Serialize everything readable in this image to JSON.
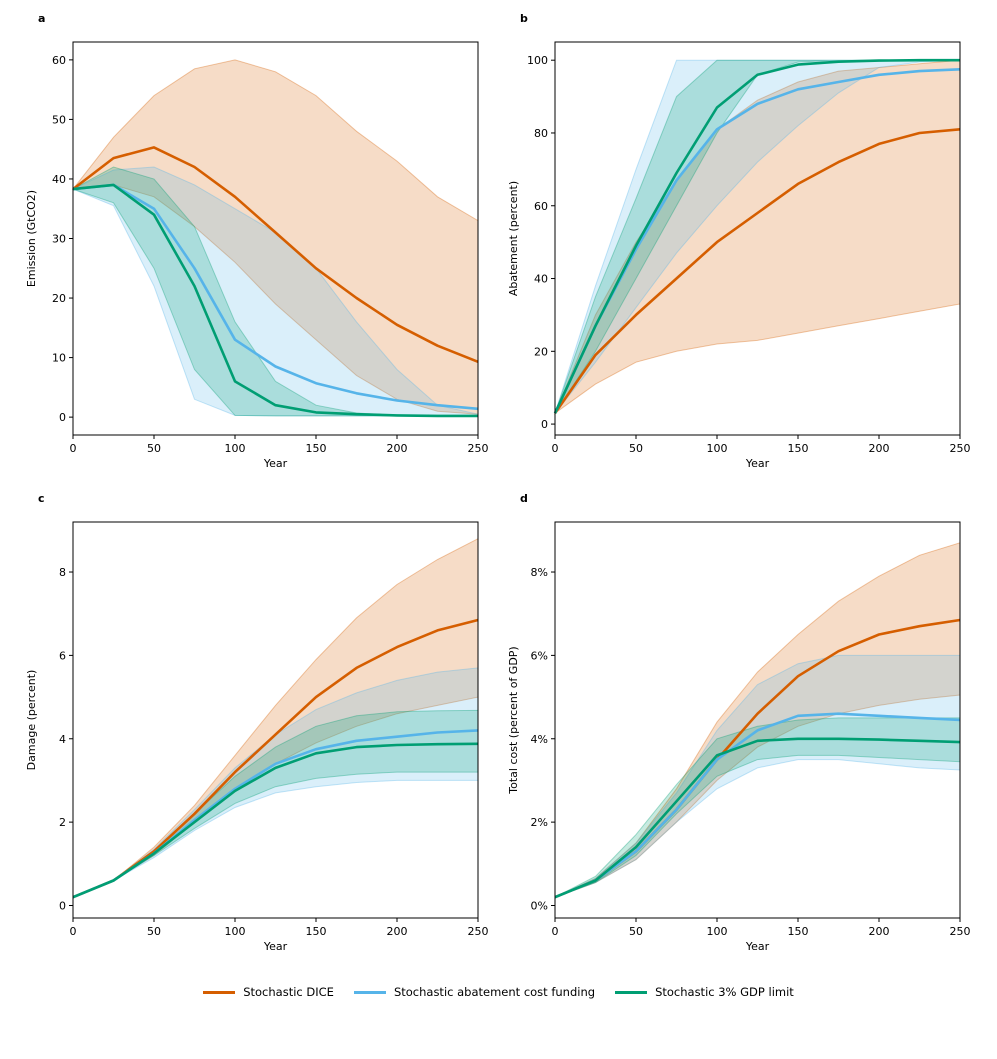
{
  "legend": {
    "items": [
      {
        "label": "Stochastic DICE",
        "color": "#d55e00"
      },
      {
        "label": "Stochastic abatement cost funding",
        "color": "#56b4e9"
      },
      {
        "label": "Stochastic 3% GDP limit",
        "color": "#009e73"
      }
    ]
  },
  "chart_data": [
    {
      "panel": "a",
      "type": "area",
      "xlabel": "Year",
      "ylabel": "Emission (GtCO2)",
      "xlim": [
        0,
        250
      ],
      "ylim": [
        -3,
        63
      ],
      "xticks": [
        0,
        50,
        100,
        150,
        200,
        250
      ],
      "yticks": [
        0,
        10,
        20,
        30,
        40,
        50,
        60
      ],
      "percent": false,
      "series": [
        {
          "name": "Stochastic DICE",
          "color": "#d55e00",
          "x": [
            0,
            25,
            50,
            75,
            100,
            125,
            150,
            175,
            200,
            225,
            250
          ],
          "mean": [
            38.3,
            43.5,
            45.3,
            42,
            37,
            31,
            25,
            20,
            15.5,
            12,
            9.3
          ],
          "lower": [
            38.3,
            39,
            37,
            32,
            26,
            19,
            13,
            7,
            3,
            1,
            0.5
          ],
          "upper": [
            38.3,
            47,
            54,
            58.5,
            60,
            58,
            54,
            48,
            43,
            37,
            33
          ]
        },
        {
          "name": "Stochastic abatement cost funding",
          "color": "#56b4e9",
          "x": [
            0,
            25,
            50,
            75,
            100,
            125,
            150,
            175,
            200,
            225,
            250
          ],
          "mean": [
            38.3,
            39,
            35,
            25,
            13,
            8.5,
            5.7,
            4,
            2.8,
            2,
            1.4
          ],
          "lower": [
            38.3,
            35.5,
            22,
            3,
            0.3,
            0.2,
            0.2,
            0.2,
            0.2,
            0.2,
            0.2
          ],
          "upper": [
            38.3,
            41.5,
            42,
            39,
            35,
            31,
            25,
            16,
            8,
            2,
            0.5
          ]
        },
        {
          "name": "Stochastic 3% GDP limit",
          "color": "#009e73",
          "x": [
            0,
            25,
            50,
            75,
            100,
            125,
            150,
            175,
            200,
            225,
            250
          ],
          "mean": [
            38.3,
            39,
            34,
            22,
            6,
            2,
            0.8,
            0.5,
            0.3,
            0.2,
            0.2
          ],
          "lower": [
            38.3,
            36,
            25,
            8,
            0.3,
            0.2,
            0.2,
            0.2,
            0.2,
            0.2,
            0.2
          ],
          "upper": [
            38.3,
            42,
            40,
            32,
            16,
            6,
            2,
            0.7,
            0.3,
            0.2,
            0.2
          ]
        }
      ]
    },
    {
      "panel": "b",
      "type": "area",
      "xlabel": "Year",
      "ylabel": "Abatement (percent)",
      "xlim": [
        0,
        250
      ],
      "ylim": [
        -3,
        105
      ],
      "xticks": [
        0,
        50,
        100,
        150,
        200,
        250
      ],
      "yticks": [
        0,
        20,
        40,
        60,
        80,
        100
      ],
      "percent": false,
      "series": [
        {
          "name": "Stochastic DICE",
          "color": "#d55e00",
          "x": [
            0,
            25,
            50,
            75,
            100,
            125,
            150,
            175,
            200,
            225,
            250
          ],
          "mean": [
            3,
            19,
            30,
            40,
            50,
            58,
            66,
            72,
            77,
            80,
            81
          ],
          "lower": [
            3,
            11,
            17,
            20,
            22,
            23,
            25,
            27,
            29,
            31,
            33
          ],
          "upper": [
            3,
            30,
            50,
            67,
            81,
            89,
            94,
            97,
            98,
            99,
            100
          ]
        },
        {
          "name": "Stochastic abatement cost funding",
          "color": "#56b4e9",
          "x": [
            0,
            25,
            50,
            75,
            100,
            125,
            150,
            175,
            200,
            225,
            250
          ],
          "mean": [
            3,
            27,
            48,
            67,
            81,
            88,
            92,
            94,
            96,
            97,
            97.5
          ],
          "lower": [
            3,
            17,
            32,
            47,
            60,
            72,
            82,
            91,
            98,
            99.5,
            100
          ],
          "upper": [
            3,
            38,
            70,
            100,
            100,
            100,
            100,
            100,
            100,
            100,
            100
          ]
        },
        {
          "name": "Stochastic 3% GDP limit",
          "color": "#009e73",
          "x": [
            0,
            25,
            50,
            75,
            100,
            125,
            150,
            175,
            200,
            225,
            250
          ],
          "mean": [
            3,
            27,
            49,
            69,
            87,
            96,
            98.8,
            99.6,
            99.9,
            100,
            100
          ],
          "lower": [
            3,
            20,
            40,
            60,
            80,
            96,
            99.5,
            100,
            100,
            100,
            100
          ],
          "upper": [
            3,
            35,
            62,
            90,
            100,
            100,
            100,
            100,
            100,
            100,
            100
          ]
        }
      ]
    },
    {
      "panel": "c",
      "type": "area",
      "xlabel": "Year",
      "ylabel": "Damage (percent)",
      "xlim": [
        0,
        250
      ],
      "ylim": [
        -0.3,
        9.2
      ],
      "xticks": [
        0,
        50,
        100,
        150,
        200,
        250
      ],
      "yticks": [
        0,
        2,
        4,
        6,
        8
      ],
      "percent": false,
      "series": [
        {
          "name": "Stochastic DICE",
          "color": "#d55e00",
          "x": [
            0,
            25,
            50,
            75,
            100,
            125,
            150,
            175,
            200,
            225,
            250
          ],
          "mean": [
            0.2,
            0.6,
            1.3,
            2.2,
            3.2,
            4.1,
            5,
            5.7,
            6.2,
            6.6,
            6.85
          ],
          "lower": [
            0.2,
            0.6,
            1.2,
            2,
            2.8,
            3.4,
            3.9,
            4.3,
            4.6,
            4.8,
            5
          ],
          "upper": [
            0.2,
            0.6,
            1.4,
            2.4,
            3.6,
            4.8,
            5.9,
            6.9,
            7.7,
            8.3,
            8.8
          ]
        },
        {
          "name": "Stochastic abatement cost funding",
          "color": "#56b4e9",
          "x": [
            0,
            25,
            50,
            75,
            100,
            125,
            150,
            175,
            200,
            225,
            250
          ],
          "mean": [
            0.2,
            0.6,
            1.25,
            2.05,
            2.8,
            3.4,
            3.75,
            3.95,
            4.05,
            4.15,
            4.2
          ],
          "lower": [
            0.2,
            0.6,
            1.15,
            1.8,
            2.35,
            2.7,
            2.85,
            2.95,
            3,
            3,
            3
          ],
          "upper": [
            0.2,
            0.6,
            1.35,
            2.3,
            3.3,
            4.1,
            4.7,
            5.1,
            5.4,
            5.6,
            5.7
          ]
        },
        {
          "name": "Stochastic 3% GDP limit",
          "color": "#009e73",
          "x": [
            0,
            25,
            50,
            75,
            100,
            125,
            150,
            175,
            200,
            225,
            250
          ],
          "mean": [
            0.2,
            0.6,
            1.25,
            2,
            2.75,
            3.3,
            3.65,
            3.8,
            3.85,
            3.87,
            3.88
          ],
          "lower": [
            0.2,
            0.6,
            1.2,
            1.85,
            2.45,
            2.85,
            3.05,
            3.15,
            3.2,
            3.2,
            3.2
          ],
          "upper": [
            0.2,
            0.6,
            1.3,
            2.2,
            3.1,
            3.8,
            4.3,
            4.55,
            4.65,
            4.67,
            4.68
          ]
        }
      ]
    },
    {
      "panel": "d",
      "type": "area",
      "xlabel": "Year",
      "ylabel": "Total cost (percent of GDP)",
      "xlim": [
        0,
        250
      ],
      "ylim": [
        -0.3,
        9.2
      ],
      "xticks": [
        0,
        50,
        100,
        150,
        200,
        250
      ],
      "yticks": [
        0,
        2,
        4,
        6,
        8
      ],
      "percent": true,
      "series": [
        {
          "name": "Stochastic DICE",
          "color": "#d55e00",
          "x": [
            0,
            25,
            50,
            75,
            100,
            125,
            150,
            175,
            200,
            225,
            250
          ],
          "mean": [
            0.2,
            0.6,
            1.3,
            2.3,
            3.5,
            4.6,
            5.5,
            6.1,
            6.5,
            6.7,
            6.85
          ],
          "lower": [
            0.2,
            0.55,
            1.1,
            2,
            3,
            3.8,
            4.3,
            4.6,
            4.8,
            4.95,
            5.05
          ],
          "upper": [
            0.2,
            0.65,
            1.5,
            2.8,
            4.4,
            5.6,
            6.5,
            7.3,
            7.9,
            8.4,
            8.7
          ]
        },
        {
          "name": "Stochastic abatement cost funding",
          "color": "#56b4e9",
          "x": [
            0,
            25,
            50,
            75,
            100,
            125,
            150,
            175,
            200,
            225,
            250
          ],
          "mean": [
            0.2,
            0.6,
            1.3,
            2.3,
            3.5,
            4.2,
            4.55,
            4.6,
            4.55,
            4.5,
            4.45
          ],
          "lower": [
            0.2,
            0.55,
            1.1,
            2,
            2.8,
            3.3,
            3.5,
            3.5,
            3.4,
            3.3,
            3.25
          ],
          "upper": [
            0.2,
            0.65,
            1.5,
            2.7,
            4.2,
            5.3,
            5.8,
            6,
            6,
            6,
            6
          ]
        },
        {
          "name": "Stochastic 3% GDP limit",
          "color": "#009e73",
          "x": [
            0,
            25,
            50,
            75,
            100,
            125,
            150,
            175,
            200,
            225,
            250
          ],
          "mean": [
            0.2,
            0.6,
            1.4,
            2.5,
            3.6,
            3.95,
            4,
            4,
            3.98,
            3.95,
            3.92
          ],
          "lower": [
            0.2,
            0.55,
            1.2,
            2.2,
            3.1,
            3.5,
            3.6,
            3.6,
            3.55,
            3.5,
            3.45
          ],
          "upper": [
            0.2,
            0.7,
            1.7,
            2.9,
            4,
            4.3,
            4.45,
            4.5,
            4.5,
            4.5,
            4.5
          ]
        }
      ]
    }
  ]
}
